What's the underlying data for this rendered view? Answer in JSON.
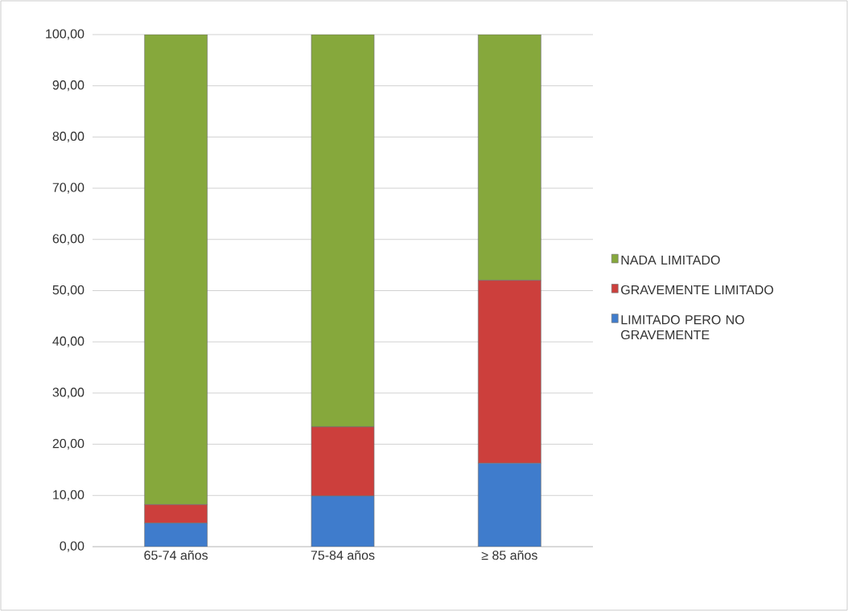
{
  "chart_data": {
    "type": "bar",
    "stacked": true,
    "categories": [
      "65-74 años",
      "75-84 años",
      "≥ 85 años"
    ],
    "series": [
      {
        "name": "LIMITADO PERO NO GRAVEMENTE",
        "color": "#3f7ccc",
        "values": [
          4.6,
          9.9,
          16.3
        ]
      },
      {
        "name": "GRAVEMENTE LIMITADO",
        "color": "#cc3f3c",
        "values": [
          3.6,
          13.5,
          35.7
        ]
      },
      {
        "name": "NADA LIMITADO",
        "color": "#86a83c",
        "values": [
          91.8,
          76.6,
          48.0
        ]
      }
    ],
    "ylim": [
      0,
      100
    ],
    "yticks": [
      {
        "value": 0,
        "label": "0,00"
      },
      {
        "value": 10,
        "label": "10,00"
      },
      {
        "value": 20,
        "label": "20,00"
      },
      {
        "value": 30,
        "label": "30,00"
      },
      {
        "value": 40,
        "label": "40,00"
      },
      {
        "value": 50,
        "label": "50,00"
      },
      {
        "value": 60,
        "label": "60,00"
      },
      {
        "value": 70,
        "label": "70,00"
      },
      {
        "value": 80,
        "label": "80,00"
      },
      {
        "value": 90,
        "label": "90,00"
      },
      {
        "value": 100,
        "label": "100,00"
      }
    ],
    "grid": "y",
    "legend": "right"
  }
}
